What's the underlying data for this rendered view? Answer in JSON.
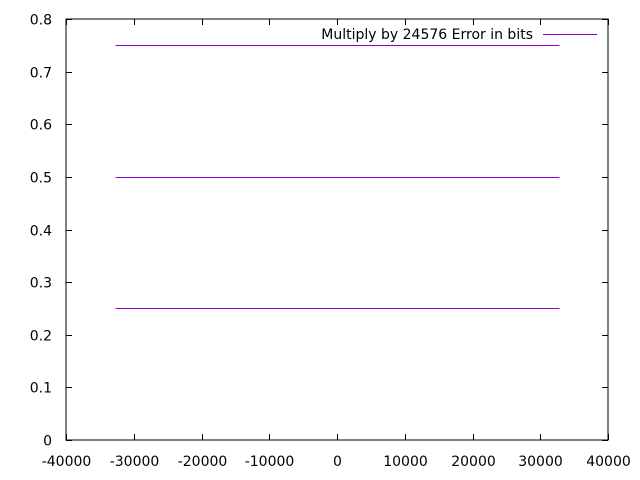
{
  "chart_data": {
    "type": "line",
    "title": "",
    "xlabel": "",
    "ylabel": "",
    "xlim": [
      -40000,
      40000
    ],
    "ylim": [
      0,
      0.8
    ],
    "x_ticks": [
      -40000,
      -30000,
      -20000,
      -10000,
      0,
      10000,
      20000,
      30000,
      40000
    ],
    "y_ticks": [
      0,
      0.1,
      0.2,
      0.3,
      0.4,
      0.5,
      0.6,
      0.7,
      0.8
    ],
    "x_tick_labels": [
      "-40000",
      "-30000",
      "-20000",
      "-10000",
      "0",
      "10000",
      "20000",
      "30000",
      "40000"
    ],
    "y_tick_labels": [
      "0",
      "0.1",
      "0.2",
      "0.3",
      "0.4",
      "0.5",
      "0.6",
      "0.7",
      "0.8"
    ],
    "grid": false,
    "legend_position": "top-right",
    "series": [
      {
        "name": "Multiply by 24576 Error in bits",
        "color": "#9400d3",
        "segments": [
          {
            "x": [
              -32768,
              32767
            ],
            "y": [
              0.25,
              0.25
            ]
          },
          {
            "x": [
              -32768,
              32767
            ],
            "y": [
              0.5,
              0.5
            ]
          },
          {
            "x": [
              -32768,
              32767
            ],
            "y": [
              0.75,
              0.75
            ]
          }
        ]
      }
    ]
  }
}
